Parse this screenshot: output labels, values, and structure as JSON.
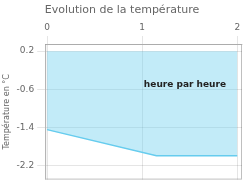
{
  "chart_data": {
    "type": "area",
    "title": "Evolution de la température",
    "ylabel": "Température en °C",
    "annotation": {
      "text": "heure par heure",
      "x": 1.45,
      "y": -0.5
    },
    "x": [
      0,
      1.15,
      2
    ],
    "values": [
      -1.45,
      -2.0,
      -2.0
    ],
    "fill_top": 0.2,
    "color": "#66ccee",
    "xlim": [
      -0.02,
      2.05
    ],
    "xticks": [
      0,
      1,
      2
    ],
    "ylim": [
      -2.5,
      0.35
    ],
    "yticks": [
      0.2,
      -0.6,
      -1.4,
      -2.2
    ],
    "grid": true
  }
}
